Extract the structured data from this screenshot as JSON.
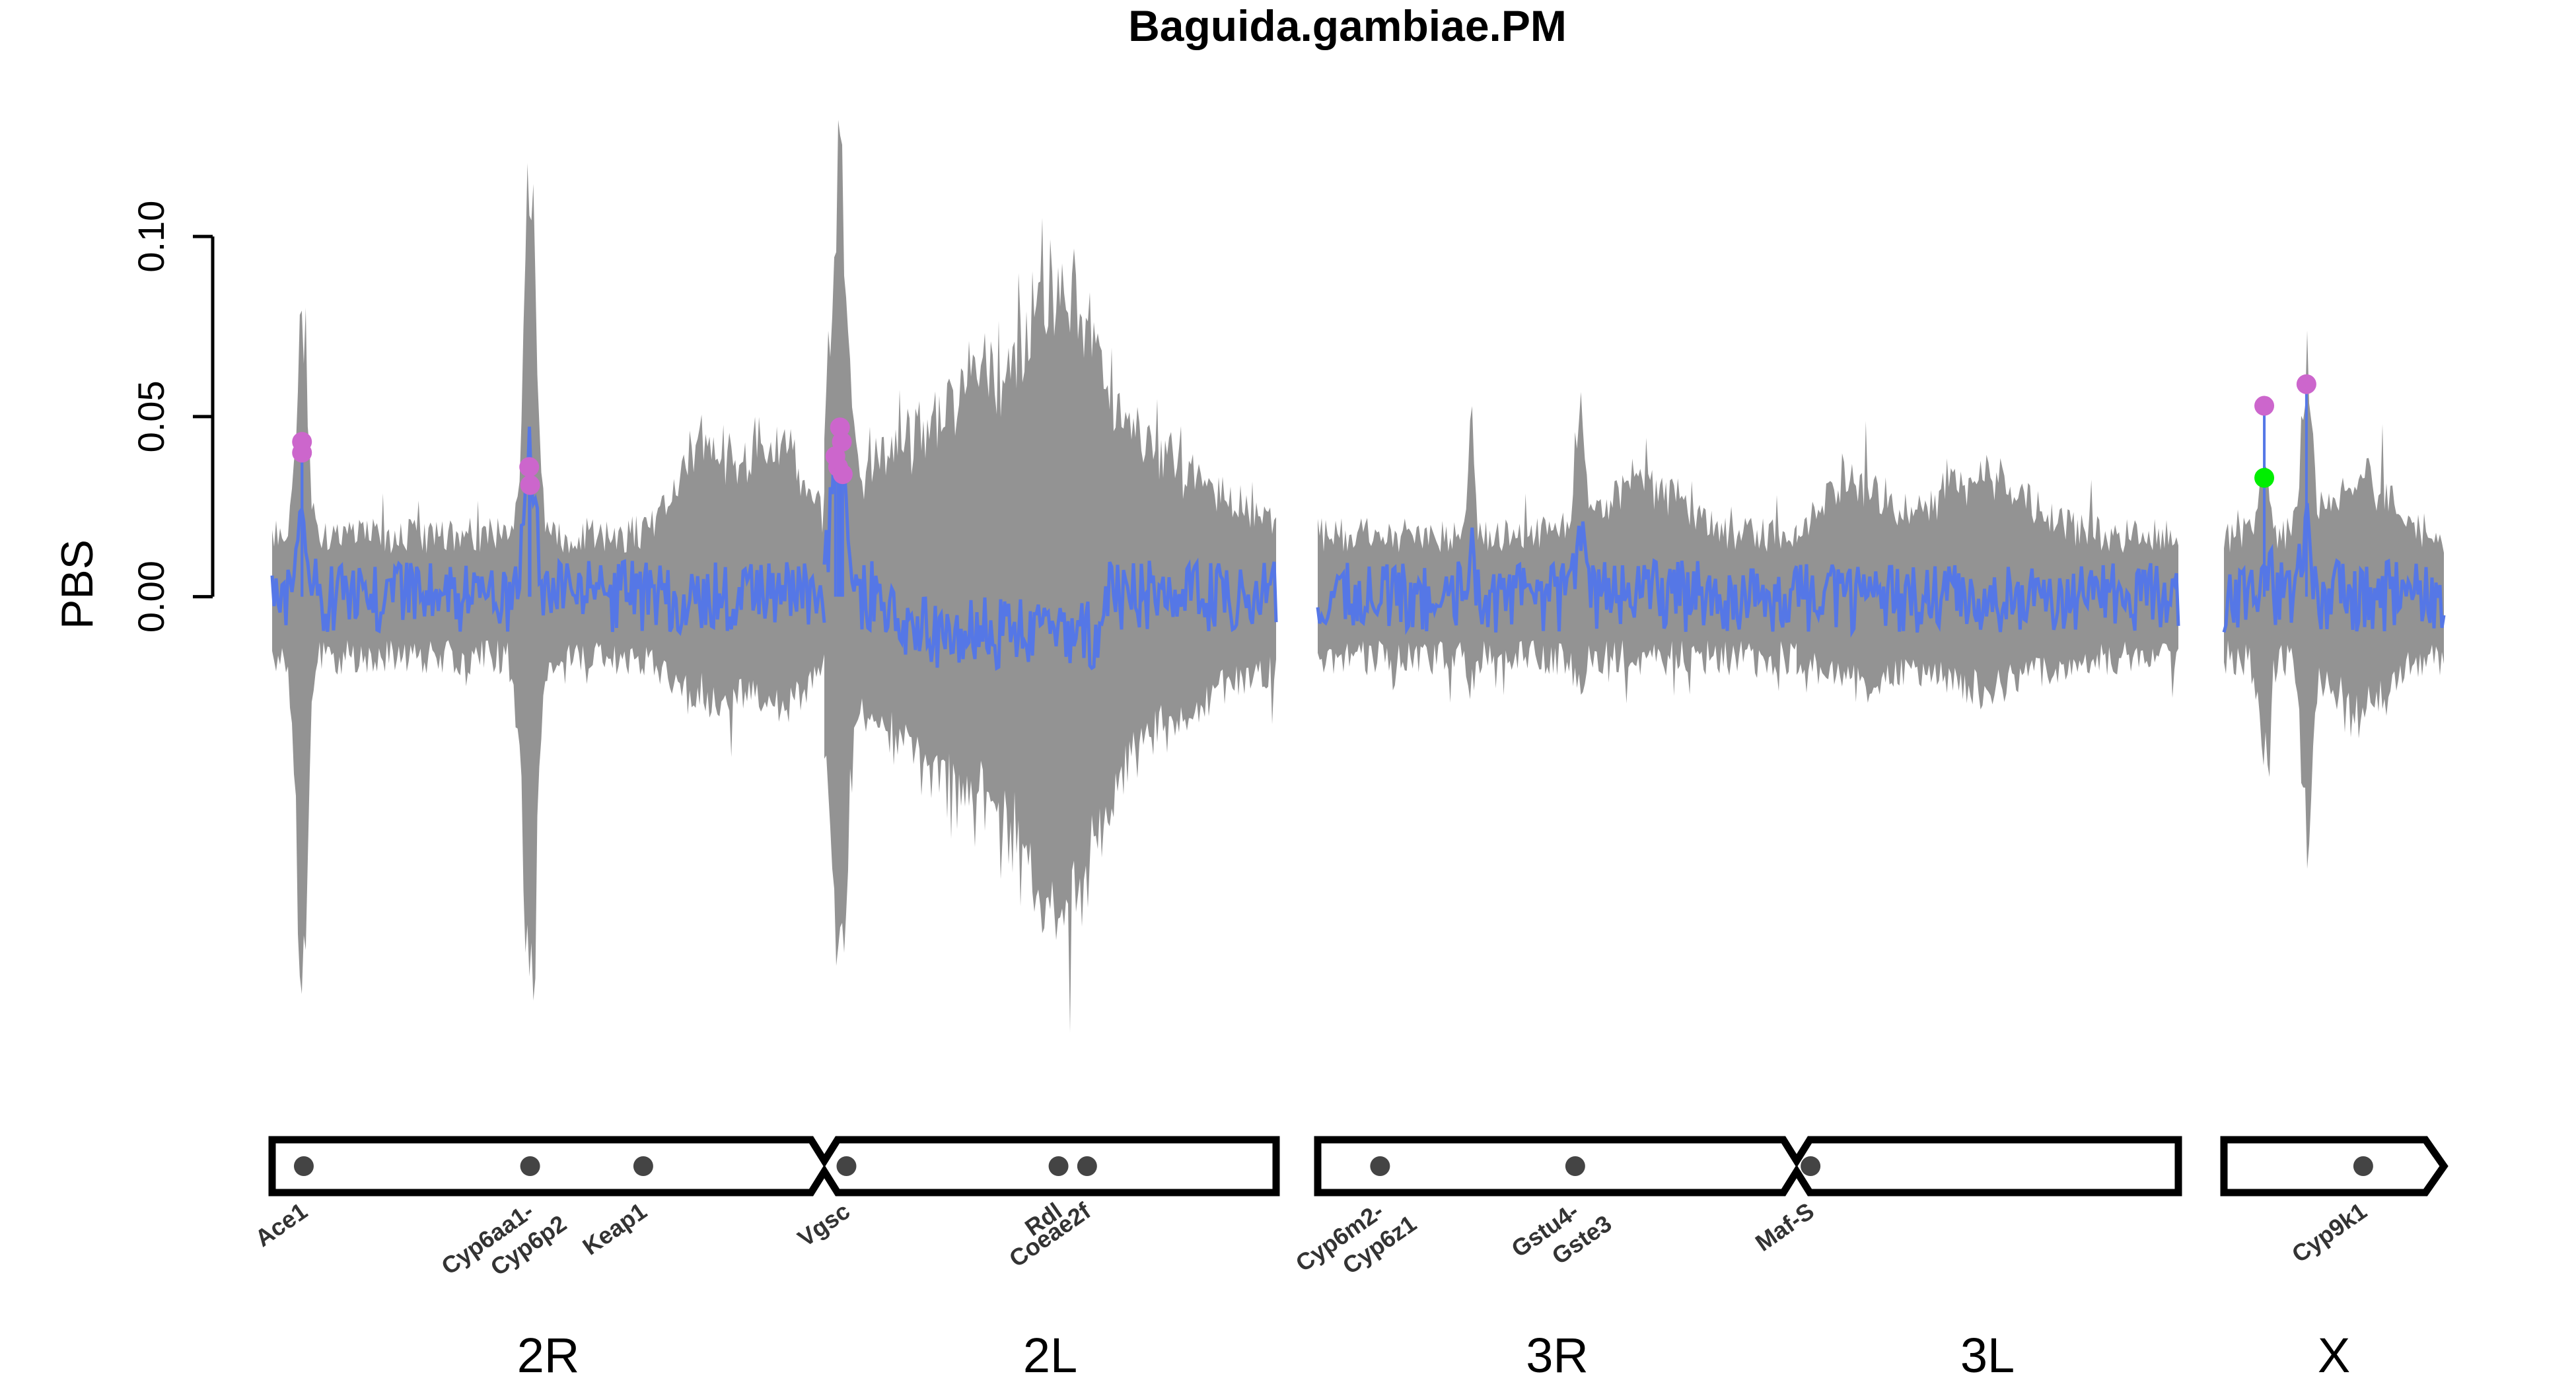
{
  "chart_data": {
    "type": "line",
    "title": "Baguida.gambiae.PM",
    "ylabel": "PBS",
    "yticks": [
      "0.00",
      "0.05",
      "0.10"
    ],
    "ylim": [
      -0.135,
      0.14
    ],
    "y_tick_values": [
      0,
      0.05,
      0.1
    ],
    "colors": {
      "envelope": "#808080",
      "mean_line": "#5577e6",
      "peak_marker": "#cc66cc",
      "highlight_marker": "#00ee00",
      "gene_marker": "#444444",
      "outline": "#000000"
    },
    "chromosomes": [
      {
        "name": "2R",
        "length": 61
      },
      {
        "name": "2L",
        "length": 49
      },
      {
        "name": "3R",
        "length": 53
      },
      {
        "name": "3L",
        "length": 41
      },
      {
        "name": "X",
        "length": 24
      }
    ],
    "genes": [
      {
        "label": "Ace1",
        "chrom": "2R",
        "pos": 3.5
      },
      {
        "label": "Cyp6aa1-\nCyp6p2",
        "chrom": "2R",
        "pos": 28.5
      },
      {
        "label": "Keap1",
        "chrom": "2R",
        "pos": 41
      },
      {
        "label": "Vgsc",
        "chrom": "2L",
        "pos": 2.4
      },
      {
        "label": "Rdl",
        "chrom": "2L",
        "pos": 25.4
      },
      {
        "label": "Coeae2f",
        "chrom": "2L",
        "pos": 28.5
      },
      {
        "label": "Cyp6m2-\nCyp6z1",
        "chrom": "3R",
        "pos": 6.9
      },
      {
        "label": "Gstu4-\nGste3",
        "chrom": "3R",
        "pos": 28.5
      },
      {
        "label": "Maf-S",
        "chrom": "3L",
        "pos": 1.5
      },
      {
        "label": "Cyp9k1",
        "chrom": "X",
        "pos": 15.2
      }
    ],
    "peak_points": [
      {
        "chrom": "2R",
        "pos": 3.3,
        "y": 0.043,
        "color": "peak"
      },
      {
        "chrom": "2R",
        "pos": 3.3,
        "y": 0.04,
        "color": "peak"
      },
      {
        "chrom": "2R",
        "pos": 28.4,
        "y": 0.036,
        "color": "peak"
      },
      {
        "chrom": "2R",
        "pos": 28.5,
        "y": 0.031,
        "color": "peak"
      },
      {
        "chrom": "2L",
        "pos": 1.7,
        "y": 0.047,
        "color": "peak"
      },
      {
        "chrom": "2L",
        "pos": 1.9,
        "y": 0.043,
        "color": "peak"
      },
      {
        "chrom": "2L",
        "pos": 1.2,
        "y": 0.039,
        "color": "peak"
      },
      {
        "chrom": "2L",
        "pos": 1.5,
        "y": 0.036,
        "color": "peak"
      },
      {
        "chrom": "2L",
        "pos": 2.0,
        "y": 0.034,
        "color": "peak"
      },
      {
        "chrom": "X",
        "pos": 4.4,
        "y": 0.053,
        "color": "peak"
      },
      {
        "chrom": "X",
        "pos": 9.0,
        "y": 0.059,
        "color": "peak"
      },
      {
        "chrom": "X",
        "pos": 4.4,
        "y": 0.033,
        "color": "highlight"
      }
    ]
  }
}
